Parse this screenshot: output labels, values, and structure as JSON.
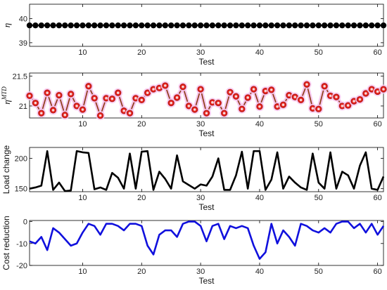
{
  "chart_data": [
    {
      "type": "line",
      "ylabel": "η",
      "xlabel": "Test",
      "xlim": [
        1,
        61
      ],
      "ylim": [
        38.85,
        40.6
      ],
      "xticks": [
        10,
        20,
        30,
        40,
        50,
        60
      ],
      "yticks": [
        39,
        40
      ],
      "grid": false,
      "series": [
        {
          "color": "#000000",
          "marker": "circle",
          "values": [
            39.72,
            39.72,
            39.72,
            39.72,
            39.72,
            39.72,
            39.72,
            39.72,
            39.72,
            39.72,
            39.72,
            39.72,
            39.72,
            39.72,
            39.72,
            39.72,
            39.72,
            39.72,
            39.72,
            39.72,
            39.72,
            39.72,
            39.72,
            39.72,
            39.72,
            39.72,
            39.72,
            39.72,
            39.72,
            39.72,
            39.72,
            39.72,
            39.72,
            39.72,
            39.72,
            39.72,
            39.72,
            39.72,
            39.72,
            39.72,
            39.72,
            39.72,
            39.72,
            39.72,
            39.72,
            39.72,
            39.72,
            39.72,
            39.72,
            39.72,
            39.72,
            39.72,
            39.72,
            39.72,
            39.72,
            39.72,
            39.72,
            39.72,
            39.72,
            39.72,
            39.72
          ]
        }
      ]
    },
    {
      "type": "line",
      "ylabel": "η^MTD",
      "xlabel": "Test",
      "xlim": [
        1,
        61
      ],
      "ylim": [
        20.8,
        21.55
      ],
      "xticks": [
        10,
        20,
        30,
        40,
        50,
        60
      ],
      "yticks": [
        21,
        21.5
      ],
      "grid": false,
      "series": [
        {
          "color": "#d42020",
          "marker": "circle",
          "values": [
            21.17,
            21.05,
            20.88,
            21.22,
            20.93,
            21.18,
            20.85,
            21.2,
            21.0,
            20.94,
            21.33,
            21.13,
            20.84,
            21.13,
            21.12,
            21.22,
            20.92,
            20.88,
            21.13,
            21.1,
            21.22,
            21.28,
            21.3,
            21.34,
            21.05,
            21.14,
            21.32,
            21.0,
            20.94,
            21.28,
            20.88,
            21.06,
            21.05,
            20.88,
            21.23,
            21.16,
            20.95,
            21.14,
            21.28,
            20.99,
            21.25,
            21.27,
            20.99,
            21.02,
            21.18,
            21.15,
            21.1,
            21.36,
            20.96,
            20.95,
            21.33,
            21.17,
            21.15,
            21.0,
            21.01,
            21.08,
            21.11,
            21.21,
            21.28,
            21.24,
            21.28
          ]
        }
      ]
    },
    {
      "type": "line",
      "ylabel": "Load change",
      "xlabel": "Test",
      "xlim": [
        1,
        61
      ],
      "ylim": [
        145,
        218
      ],
      "xticks": [
        10,
        20,
        30,
        40,
        50,
        60
      ],
      "yticks": [
        150,
        200
      ],
      "grid": false,
      "series": [
        {
          "color": "#000000",
          "values": [
            150,
            152,
            155,
            212,
            148,
            160,
            146,
            147,
            212,
            210,
            209,
            149,
            152,
            148,
            176,
            168,
            150,
            208,
            150,
            211,
            212,
            148,
            178,
            166,
            150,
            205,
            162,
            156,
            150,
            157,
            155,
            170,
            200,
            148,
            148,
            172,
            211,
            150,
            212,
            212,
            148,
            165,
            210,
            150,
            170,
            160,
            152,
            148,
            208,
            160,
            150,
            210,
            150,
            178,
            172,
            150,
            188,
            210,
            150,
            148,
            170
          ]
        }
      ]
    },
    {
      "type": "line",
      "ylabel": "Cost reduction",
      "xlabel": "Test",
      "xlim": [
        1,
        61
      ],
      "ylim": [
        -20,
        0.5
      ],
      "xticks": [
        10,
        20,
        30,
        40,
        50,
        60
      ],
      "yticks": [
        -20,
        -10,
        0
      ],
      "grid": false,
      "series": [
        {
          "color": "#1010dd",
          "values": [
            -9,
            -10,
            -7,
            -13,
            -3,
            -5,
            -8,
            -11,
            -10,
            -5,
            -1,
            -2,
            -6,
            -1,
            -1,
            -2,
            -4,
            -1,
            -1,
            -2,
            -11,
            -15,
            -6,
            -4,
            -4,
            -7,
            -1,
            0,
            0,
            -2,
            -9,
            -2,
            -1,
            -8,
            -2,
            -3,
            -2,
            -3,
            -11,
            -17,
            -14,
            -1,
            -10,
            -4,
            -7,
            -11,
            -1,
            -2,
            -4,
            -5,
            -3,
            -5,
            -1,
            0,
            0,
            -3,
            -1,
            -5,
            -1,
            -6,
            -2
          ]
        }
      ]
    }
  ]
}
